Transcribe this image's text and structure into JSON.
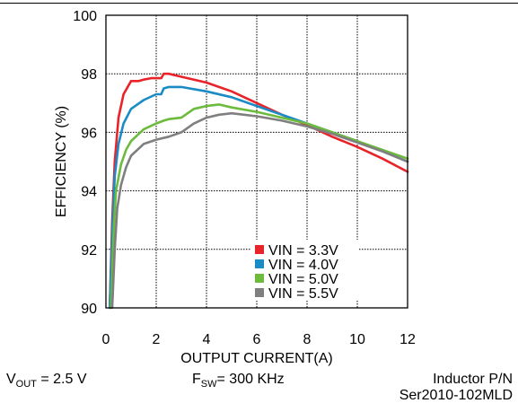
{
  "chart_data": {
    "type": "line",
    "xlabel": "OUTPUT CURRENT(A)",
    "ylabel": "EFFICIENCY (%)",
    "xlim": [
      0,
      12
    ],
    "ylim": [
      90,
      100
    ],
    "xticks": [
      0,
      2,
      4,
      6,
      8,
      10,
      12
    ],
    "yticks": [
      90,
      92,
      94,
      96,
      98,
      100
    ],
    "grid": "dotted",
    "legend_position": "bottom-right",
    "series": [
      {
        "name": "VIN = 3.3V",
        "color": "#e8232a",
        "points": [
          [
            0.15,
            90.0
          ],
          [
            0.25,
            93.0
          ],
          [
            0.35,
            95.0
          ],
          [
            0.5,
            96.5
          ],
          [
            0.7,
            97.3
          ],
          [
            1.0,
            97.75
          ],
          [
            1.3,
            97.75
          ],
          [
            1.5,
            97.8
          ],
          [
            1.8,
            97.85
          ],
          [
            2.0,
            97.85
          ],
          [
            2.2,
            97.85
          ],
          [
            2.3,
            98.0
          ],
          [
            2.5,
            98.0
          ],
          [
            3.0,
            97.9
          ],
          [
            4.0,
            97.7
          ],
          [
            5.0,
            97.4
          ],
          [
            6.0,
            97.0
          ],
          [
            7.0,
            96.6
          ],
          [
            8.0,
            96.25
          ],
          [
            9.0,
            95.85
          ],
          [
            10.0,
            95.5
          ],
          [
            11.0,
            95.1
          ],
          [
            12.0,
            94.65
          ]
        ]
      },
      {
        "name": "VIN = 4.0V",
        "color": "#1b8bc6",
        "points": [
          [
            0.15,
            90.0
          ],
          [
            0.25,
            92.5
          ],
          [
            0.35,
            94.5
          ],
          [
            0.5,
            95.6
          ],
          [
            0.7,
            96.3
          ],
          [
            1.0,
            96.8
          ],
          [
            1.5,
            97.1
          ],
          [
            2.0,
            97.3
          ],
          [
            2.2,
            97.3
          ],
          [
            2.3,
            97.5
          ],
          [
            2.5,
            97.55
          ],
          [
            3.0,
            97.55
          ],
          [
            4.0,
            97.4
          ],
          [
            5.0,
            97.2
          ],
          [
            6.0,
            96.9
          ],
          [
            7.0,
            96.6
          ],
          [
            8.0,
            96.3
          ],
          [
            9.0,
            96.0
          ],
          [
            10.0,
            95.7
          ],
          [
            11.0,
            95.35
          ],
          [
            12.0,
            95.0
          ]
        ]
      },
      {
        "name": "VIN = 5.0V",
        "color": "#6cbb3c",
        "points": [
          [
            0.2,
            90.0
          ],
          [
            0.3,
            92.5
          ],
          [
            0.4,
            94.0
          ],
          [
            0.6,
            94.9
          ],
          [
            0.8,
            95.4
          ],
          [
            1.0,
            95.7
          ],
          [
            1.5,
            96.1
          ],
          [
            2.0,
            96.3
          ],
          [
            2.3,
            96.4
          ],
          [
            2.5,
            96.45
          ],
          [
            3.0,
            96.5
          ],
          [
            3.5,
            96.8
          ],
          [
            4.0,
            96.9
          ],
          [
            4.5,
            96.95
          ],
          [
            5.0,
            96.85
          ],
          [
            6.0,
            96.7
          ],
          [
            7.0,
            96.5
          ],
          [
            8.0,
            96.3
          ],
          [
            9.0,
            96.0
          ],
          [
            10.0,
            95.7
          ],
          [
            11.0,
            95.4
          ],
          [
            12.0,
            95.1
          ]
        ]
      },
      {
        "name": "VIN = 5.5V",
        "color": "#7f7f7f",
        "points": [
          [
            0.25,
            90.0
          ],
          [
            0.35,
            92.0
          ],
          [
            0.45,
            93.4
          ],
          [
            0.6,
            94.2
          ],
          [
            0.8,
            94.8
          ],
          [
            1.0,
            95.2
          ],
          [
            1.5,
            95.6
          ],
          [
            2.0,
            95.75
          ],
          [
            2.5,
            95.85
          ],
          [
            3.0,
            96.0
          ],
          [
            3.5,
            96.3
          ],
          [
            4.0,
            96.5
          ],
          [
            4.5,
            96.6
          ],
          [
            5.0,
            96.65
          ],
          [
            6.0,
            96.55
          ],
          [
            7.0,
            96.4
          ],
          [
            8.0,
            96.2
          ],
          [
            9.0,
            95.95
          ],
          [
            10.0,
            95.65
          ],
          [
            11.0,
            95.35
          ],
          [
            12.0,
            95.0
          ]
        ]
      }
    ]
  },
  "conditions": {
    "vout_label": "V",
    "vout_sub": "OUT",
    "vout_value": " = 2.5 V",
    "fsw_label": "F",
    "fsw_sub": "SW",
    "fsw_value": "= 300 KHz",
    "inductor_line1": "Inductor P/N",
    "inductor_line2": "Ser2010-102MLD"
  }
}
